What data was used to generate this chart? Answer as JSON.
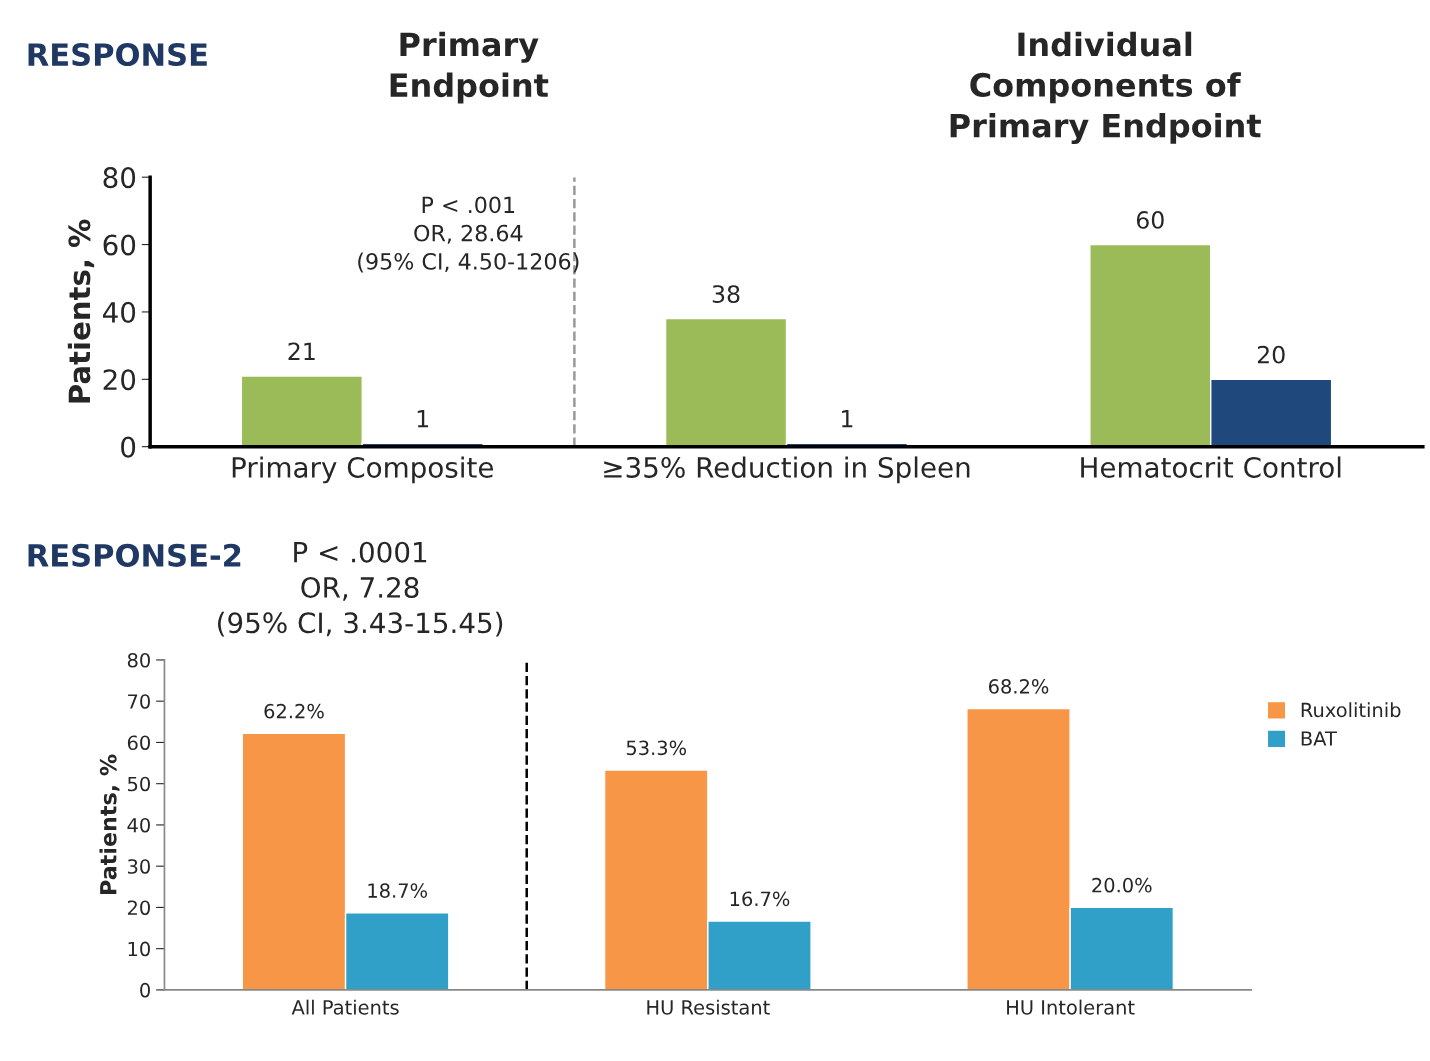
{
  "chart_data": [
    {
      "type": "bar",
      "title": "RESPONSE",
      "ylabel": "Patients, %",
      "categories": [
        "Primary Composite",
        "≥35% Reduction in Spleen",
        "Hematocrit Control"
      ],
      "series": [
        {
          "color": "#9bbb59",
          "values": [
            21,
            38,
            60
          ]
        },
        {
          "color": "#1f497d",
          "values": [
            1,
            1,
            20
          ]
        }
      ],
      "ylim": [
        0,
        80
      ],
      "yticks": [
        0,
        20,
        40,
        60,
        80
      ],
      "data_labels": true,
      "grid": false,
      "legend": false,
      "annotations": [
        "Primary\nEndpoint",
        "Individual\nComponents of\nPrimary Endpoint",
        "P < .001\nOR, 28.64\n(95% CI, 4.50-1206)"
      ]
    },
    {
      "type": "bar",
      "title": "RESPONSE-2",
      "ylabel": "Patients, %",
      "categories": [
        "All Patients",
        "HU Resistant",
        "HU Intolerant"
      ],
      "series": [
        {
          "name": "Ruxolitinib",
          "color": "#f79646",
          "values": [
            62.2,
            53.3,
            68.2
          ],
          "value_labels": [
            "62.2%",
            "53.3%",
            "68.2%"
          ]
        },
        {
          "name": "BAT",
          "color": "#31a0c8",
          "values": [
            18.7,
            16.7,
            20.0
          ],
          "value_labels": [
            "18.7%",
            "16.7%",
            "20.0%"
          ]
        }
      ],
      "ylim": [
        0,
        80
      ],
      "yticks": [
        0,
        10,
        20,
        30,
        40,
        50,
        60,
        70,
        80
      ],
      "grid": false,
      "legend": "right",
      "annotations": [
        "P < .0001\nOR, 7.28\n(95% CI, 3.43-15.45)"
      ]
    }
  ]
}
